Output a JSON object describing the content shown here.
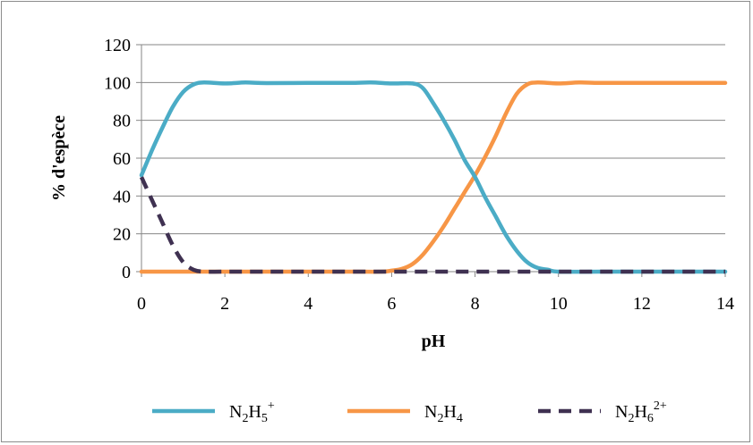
{
  "chart_data": {
    "type": "line",
    "title": "",
    "xlabel": "pH",
    "ylabel": "% d'espèce",
    "xlim": [
      0,
      14
    ],
    "ylim": [
      0,
      120
    ],
    "xticks": [
      0,
      2,
      4,
      6,
      8,
      10,
      12,
      14
    ],
    "yticks": [
      0,
      20,
      40,
      60,
      80,
      100,
      120
    ],
    "grid": "horizontal",
    "legend_position": "bottom",
    "series": [
      {
        "name_base": "N",
        "name_sub1": "2",
        "name_mid": "H",
        "name_sub2": "5",
        "name_sup": "+",
        "color": "#4bacc6",
        "dash": "solid",
        "points": [
          [
            0,
            51
          ],
          [
            0.25,
            64
          ],
          [
            0.5,
            76
          ],
          [
            0.75,
            87
          ],
          [
            1,
            95
          ],
          [
            1.25,
            99
          ],
          [
            1.5,
            100
          ],
          [
            2,
            99.5
          ],
          [
            2.5,
            100
          ],
          [
            3,
            99.7
          ],
          [
            4,
            99.8
          ],
          [
            5,
            99.8
          ],
          [
            5.5,
            100
          ],
          [
            6,
            99.5
          ],
          [
            6.5,
            99.5
          ],
          [
            6.75,
            97
          ],
          [
            7,
            89
          ],
          [
            7.25,
            80
          ],
          [
            7.5,
            70
          ],
          [
            7.75,
            59
          ],
          [
            8,
            50
          ],
          [
            8.25,
            39
          ],
          [
            8.5,
            29
          ],
          [
            8.75,
            19
          ],
          [
            9,
            11
          ],
          [
            9.25,
            5
          ],
          [
            9.5,
            2
          ],
          [
            9.75,
            1
          ],
          [
            10,
            0
          ],
          [
            11,
            0
          ],
          [
            12,
            0
          ],
          [
            13,
            0
          ],
          [
            14,
            0
          ]
        ]
      },
      {
        "name_base": "N",
        "name_sub1": "2",
        "name_mid": "H",
        "name_sub2": "4",
        "name_sup": "",
        "color": "#f79646",
        "dash": "solid",
        "points": [
          [
            0,
            0
          ],
          [
            1,
            0
          ],
          [
            2,
            0
          ],
          [
            3,
            0
          ],
          [
            4,
            0
          ],
          [
            5,
            0
          ],
          [
            5.75,
            0
          ],
          [
            6,
            0.5
          ],
          [
            6.25,
            1.5
          ],
          [
            6.5,
            4
          ],
          [
            6.75,
            9
          ],
          [
            7,
            16
          ],
          [
            7.25,
            24
          ],
          [
            7.5,
            33
          ],
          [
            7.75,
            42
          ],
          [
            8,
            51
          ],
          [
            8.25,
            61
          ],
          [
            8.5,
            72
          ],
          [
            8.75,
            84
          ],
          [
            9,
            94
          ],
          [
            9.25,
            99
          ],
          [
            9.5,
            100
          ],
          [
            10,
            99.5
          ],
          [
            10.5,
            100
          ],
          [
            11,
            99.8
          ],
          [
            12,
            99.8
          ],
          [
            13,
            99.8
          ],
          [
            14,
            99.8
          ]
        ]
      },
      {
        "name_base": "N",
        "name_sub1": "2",
        "name_mid": "H",
        "name_sub2": "6",
        "name_sup": "2+",
        "color": "#3f3151",
        "dash": "dashed",
        "points": [
          [
            0,
            50
          ],
          [
            0.25,
            38
          ],
          [
            0.5,
            26
          ],
          [
            0.75,
            14
          ],
          [
            1,
            5
          ],
          [
            1.25,
            1
          ],
          [
            1.5,
            0
          ],
          [
            2,
            0
          ],
          [
            3,
            0
          ],
          [
            4,
            0
          ],
          [
            5,
            0
          ],
          [
            6,
            0
          ],
          [
            7,
            0
          ],
          [
            8,
            0
          ],
          [
            9,
            0
          ],
          [
            10,
            0
          ],
          [
            11,
            0
          ],
          [
            12,
            0
          ],
          [
            13,
            0
          ],
          [
            14,
            0
          ]
        ]
      }
    ]
  }
}
